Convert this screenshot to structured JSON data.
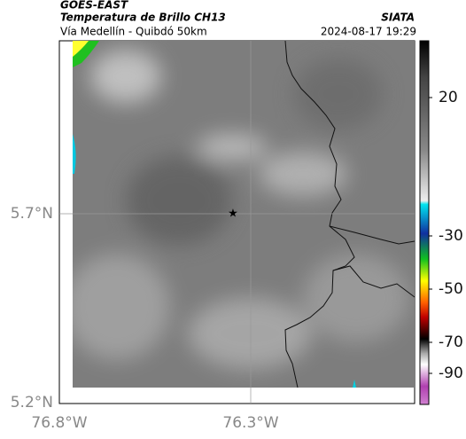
{
  "header": {
    "satellite": "GOES-EAST",
    "product": "Temperatura de Brillo CH13",
    "source": "SIATA",
    "subtitle": "Vía Medellín - Quibdó 50km",
    "datetime": "2024-08-17 19:29"
  },
  "axes": {
    "y_labels": [
      "5.7°N",
      "5.2°N"
    ],
    "x_labels": [
      "76.8°W",
      "76.3°W"
    ]
  },
  "colorbar": {
    "ticks": [
      20,
      -30,
      -50,
      -70,
      -90
    ]
  }
}
